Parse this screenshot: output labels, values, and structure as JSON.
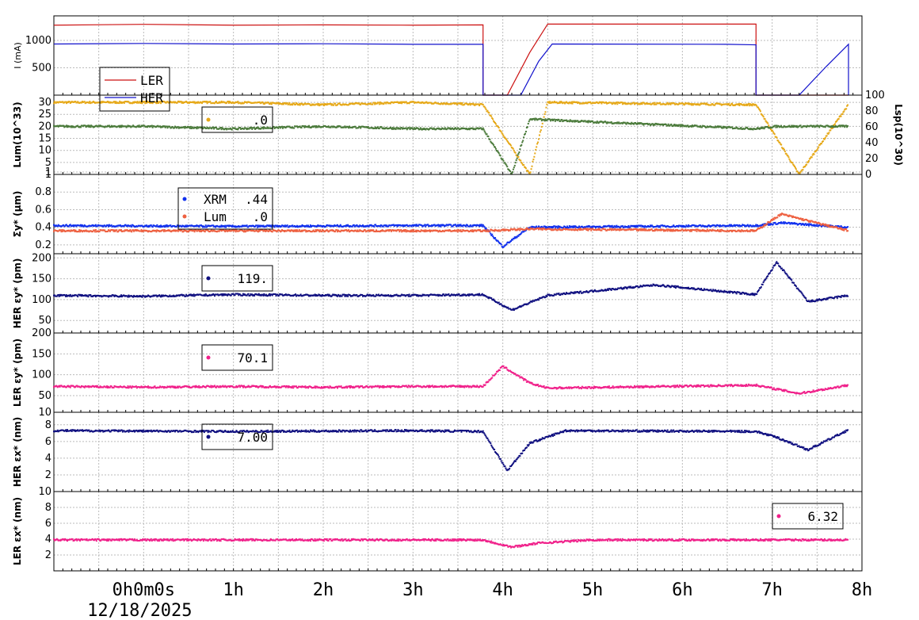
{
  "chart_data": {
    "type": "line",
    "time_axis": {
      "ticks": [
        {
          "x": 0,
          "label": "0h0m0s",
          "sub": "12/18/2025"
        },
        {
          "x": 1,
          "label": "1h"
        },
        {
          "x": 2,
          "label": "2h"
        },
        {
          "x": 3,
          "label": "3h"
        },
        {
          "x": 4,
          "label": "4h"
        },
        {
          "x": 5,
          "label": "5h"
        },
        {
          "x": 6,
          "label": "6h"
        },
        {
          "x": 7,
          "label": "7h"
        },
        {
          "x": 8,
          "label": "8h"
        }
      ],
      "xlim": [
        -1.0,
        8.0
      ]
    },
    "panels": [
      {
        "ylabel": "I (mA)",
        "ylim": [
          0,
          1450
        ],
        "yticks": [
          500,
          1000
        ],
        "legend": [
          {
            "name": "LER",
            "color": "#cc1111"
          },
          {
            "name": "HER",
            "color": "#1111cc"
          }
        ],
        "series": [
          {
            "name": "LER",
            "color": "#cc1111",
            "style": "line",
            "points": [
              [
                -1,
                1280
              ],
              [
                0,
                1295
              ],
              [
                1,
                1280
              ],
              [
                2,
                1285
              ],
              [
                3,
                1280
              ],
              [
                3.78,
                1285
              ],
              [
                3.78,
                0
              ],
              [
                4.05,
                0
              ],
              [
                4.3,
                780
              ],
              [
                4.5,
                1300
              ],
              [
                6.82,
                1300
              ],
              [
                6.82,
                0
              ],
              [
                7.85,
                0
              ]
            ]
          },
          {
            "name": "HER",
            "color": "#1111cc",
            "style": "line",
            "points": [
              [
                -1,
                935
              ],
              [
                0,
                945
              ],
              [
                1,
                935
              ],
              [
                2,
                940
              ],
              [
                3,
                930
              ],
              [
                3.78,
                930
              ],
              [
                3.78,
                0
              ],
              [
                4.2,
                0
              ],
              [
                4.4,
                620
              ],
              [
                4.55,
                935
              ],
              [
                6.5,
                930
              ],
              [
                6.82,
                920
              ],
              [
                6.82,
                0
              ],
              [
                7.3,
                0
              ],
              [
                7.6,
                520
              ],
              [
                7.85,
                930
              ],
              [
                7.85,
                0
              ]
            ]
          }
        ]
      },
      {
        "ylabel": "Lum(10^33)",
        "ylim": [
          0,
          33
        ],
        "yticks": [
          1,
          5,
          10,
          15,
          20,
          25,
          30
        ],
        "y2label": "Lsp(10^30)",
        "y2lim": [
          0,
          100
        ],
        "y2ticks": [
          0,
          20,
          40,
          60,
          80,
          100
        ],
        "legend_value": ".0",
        "legend_color": "#e6a817",
        "series": [
          {
            "name": "Lum",
            "color": "#e6a817",
            "style": "dots",
            "points": [
              [
                -1,
                30
              ],
              [
                0,
                30
              ],
              [
                1,
                30
              ],
              [
                2,
                29
              ],
              [
                3,
                30
              ],
              [
                3.78,
                29
              ],
              [
                4.3,
                0
              ],
              [
                4.5,
                30
              ],
              [
                6.82,
                29
              ],
              [
                7.3,
                0
              ],
              [
                7.85,
                29
              ]
            ]
          },
          {
            "name": "Lsp",
            "color": "#4a7a3a",
            "style": "dots",
            "points": [
              [
                -1,
                20
              ],
              [
                0,
                20
              ],
              [
                1,
                19
              ],
              [
                2,
                20
              ],
              [
                3,
                19
              ],
              [
                3.78,
                19
              ],
              [
                4.1,
                0
              ],
              [
                4.3,
                23
              ],
              [
                6.82,
                19
              ],
              [
                7.05,
                20
              ],
              [
                7.85,
                20
              ]
            ]
          }
        ]
      },
      {
        "ylabel": "Σy* (μm)",
        "ylim": [
          0.1,
          1.0
        ],
        "yticks": [
          0.2,
          0.4,
          0.6,
          0.8,
          1
        ],
        "legend": [
          {
            "name": "XRM",
            "value": ".44",
            "color": "#1030ee"
          },
          {
            "name": "Lum",
            "value": ".0",
            "color": "#ee6040"
          }
        ],
        "series": [
          {
            "name": "XRM",
            "color": "#1030ee",
            "style": "dots",
            "points": [
              [
                -1,
                0.42
              ],
              [
                1,
                0.41
              ],
              [
                3,
                0.42
              ],
              [
                3.78,
                0.42
              ],
              [
                4.0,
                0.18
              ],
              [
                4.3,
                0.4
              ],
              [
                6.82,
                0.42
              ],
              [
                7.1,
                0.45
              ],
              [
                7.85,
                0.4
              ]
            ]
          },
          {
            "name": "Lum",
            "color": "#ee6040",
            "style": "dots",
            "points": [
              [
                -1,
                0.36
              ],
              [
                1,
                0.36
              ],
              [
                3,
                0.36
              ],
              [
                3.78,
                0.36
              ],
              [
                4.3,
                0.38
              ],
              [
                6.82,
                0.36
              ],
              [
                7.1,
                0.55
              ],
              [
                7.85,
                0.36
              ]
            ]
          }
        ]
      },
      {
        "ylabel": "HER εy* (pm)",
        "ylim": [
          20,
          210
        ],
        "yticks": [
          50,
          100,
          150,
          200
        ],
        "legend_value": "119.",
        "legend_color": "#101080",
        "series": [
          {
            "name": "HER εy*",
            "color": "#101080",
            "style": "dots",
            "points": [
              [
                -1,
                110
              ],
              [
                0,
                108
              ],
              [
                1,
                112
              ],
              [
                2,
                110
              ],
              [
                3,
                110
              ],
              [
                3.78,
                112
              ],
              [
                4.1,
                75
              ],
              [
                4.5,
                110
              ],
              [
                5.7,
                135
              ],
              [
                6.82,
                112
              ],
              [
                7.05,
                190
              ],
              [
                7.4,
                95
              ],
              [
                7.85,
                110
              ]
            ]
          }
        ]
      },
      {
        "ylabel": "LER εy* (pm)",
        "ylim": [
          10,
          200
        ],
        "yticks": [
          10,
          50,
          100,
          150,
          200
        ],
        "legend_value": "70.1",
        "legend_color": "#f0208a",
        "series": [
          {
            "name": "LER εy*",
            "color": "#f0208a",
            "style": "dots",
            "points": [
              [
                -1,
                72
              ],
              [
                0,
                70
              ],
              [
                1,
                72
              ],
              [
                2,
                70
              ],
              [
                3,
                72
              ],
              [
                3.78,
                72
              ],
              [
                4.0,
                120
              ],
              [
                4.3,
                80
              ],
              [
                4.5,
                68
              ],
              [
                6.82,
                75
              ],
              [
                7.3,
                55
              ],
              [
                7.85,
                75
              ]
            ]
          }
        ]
      },
      {
        "ylabel": "HER εx* (nm)",
        "ylim": [
          0,
          9.5
        ],
        "yticks": [
          2,
          4,
          6,
          8
        ],
        "legend_value": "7.00",
        "legend_color": "#101080",
        "series": [
          {
            "name": "HER εx*",
            "color": "#101080",
            "style": "dots",
            "points": [
              [
                -1,
                7.3
              ],
              [
                1,
                7.2
              ],
              [
                3,
                7.3
              ],
              [
                3.78,
                7.2
              ],
              [
                4.05,
                2.5
              ],
              [
                4.3,
                5.8
              ],
              [
                4.7,
                7.3
              ],
              [
                6.82,
                7.2
              ],
              [
                7.05,
                6.5
              ],
              [
                7.4,
                5.0
              ],
              [
                7.85,
                7.4
              ]
            ]
          }
        ]
      },
      {
        "ylabel": "LER εx* (nm)",
        "ylim": [
          0,
          10
        ],
        "yticks": [
          2,
          4,
          6,
          8,
          10
        ],
        "legend_value": "6.32",
        "legend_color": "#f0208a",
        "series": [
          {
            "name": "LER εx*",
            "color": "#f0208a",
            "style": "dots",
            "points": [
              [
                -1,
                3.9
              ],
              [
                1,
                3.9
              ],
              [
                3,
                3.9
              ],
              [
                3.78,
                3.9
              ],
              [
                4.1,
                3.0
              ],
              [
                4.4,
                3.5
              ],
              [
                5,
                3.9
              ],
              [
                6.82,
                3.9
              ],
              [
                7.85,
                3.9
              ]
            ]
          }
        ]
      }
    ]
  }
}
